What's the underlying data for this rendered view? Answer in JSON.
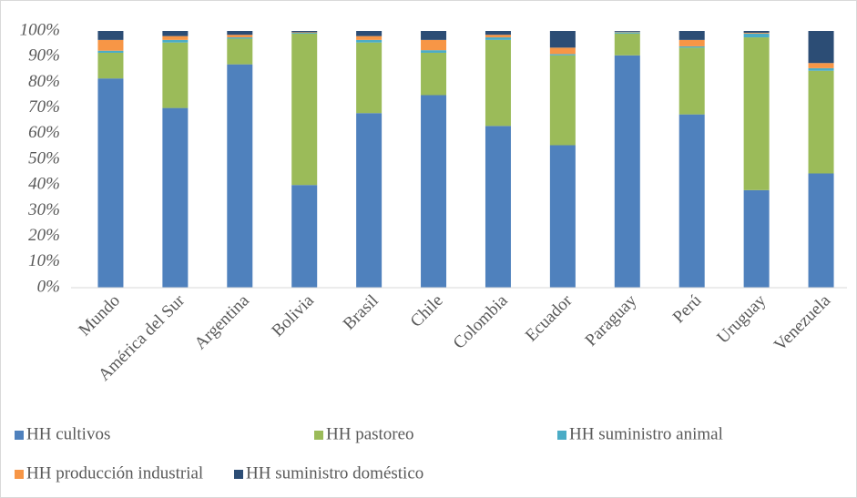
{
  "chart_data": {
    "type": "stacked_bar",
    "categories": [
      "Mundo",
      "América del Sur",
      "Argentina",
      "Bolivia",
      "Brasil",
      "Chile",
      "Colombia",
      "Ecuador",
      "Paraguay",
      "Perú",
      "Uruguay",
      "Venezuela"
    ],
    "series": [
      {
        "name": "HH cultivos",
        "color": "#4f81bd",
        "values": [
          81.5,
          70,
          87,
          40,
          68,
          75,
          63,
          55.5,
          90.5,
          67.5,
          38,
          44.5
        ]
      },
      {
        "name": "HH pastoreo",
        "color": "#9bbb59",
        "values": [
          10,
          25.5,
          10,
          59,
          27.5,
          16.5,
          33.5,
          35,
          8.5,
          26,
          59.5,
          40
        ]
      },
      {
        "name": "HH suministro animal",
        "color": "#4bacc6",
        "values": [
          0.8,
          1,
          0.5,
          0.3,
          1,
          1,
          1,
          0.5,
          0.5,
          0.5,
          1.5,
          1
        ]
      },
      {
        "name": "HH producción industrial",
        "color": "#f79646",
        "values": [
          4.2,
          1.5,
          1,
          0.2,
          1.5,
          4,
          1,
          2.5,
          0.2,
          2.5,
          0.3,
          2
        ]
      },
      {
        "name": "HH suministro doméstico",
        "color": "#2c4d75",
        "values": [
          3.5,
          2,
          1.5,
          0.5,
          2,
          3.5,
          1.5,
          6.5,
          0.3,
          3.5,
          0.7,
          12.5
        ]
      }
    ],
    "ylim": [
      0,
      100
    ],
    "yticks": [
      {
        "value": 0,
        "label": "0%"
      },
      {
        "value": 10,
        "label": "10%"
      },
      {
        "value": 20,
        "label": "20%"
      },
      {
        "value": 30,
        "label": "30%"
      },
      {
        "value": 40,
        "label": "40%"
      },
      {
        "value": 50,
        "label": "50%"
      },
      {
        "value": 60,
        "label": "60%"
      },
      {
        "value": 70,
        "label": "70%"
      },
      {
        "value": 80,
        "label": "80%"
      },
      {
        "value": 90,
        "label": "90%"
      },
      {
        "value": 100,
        "label": "100%"
      }
    ],
    "legend": "bottom"
  }
}
